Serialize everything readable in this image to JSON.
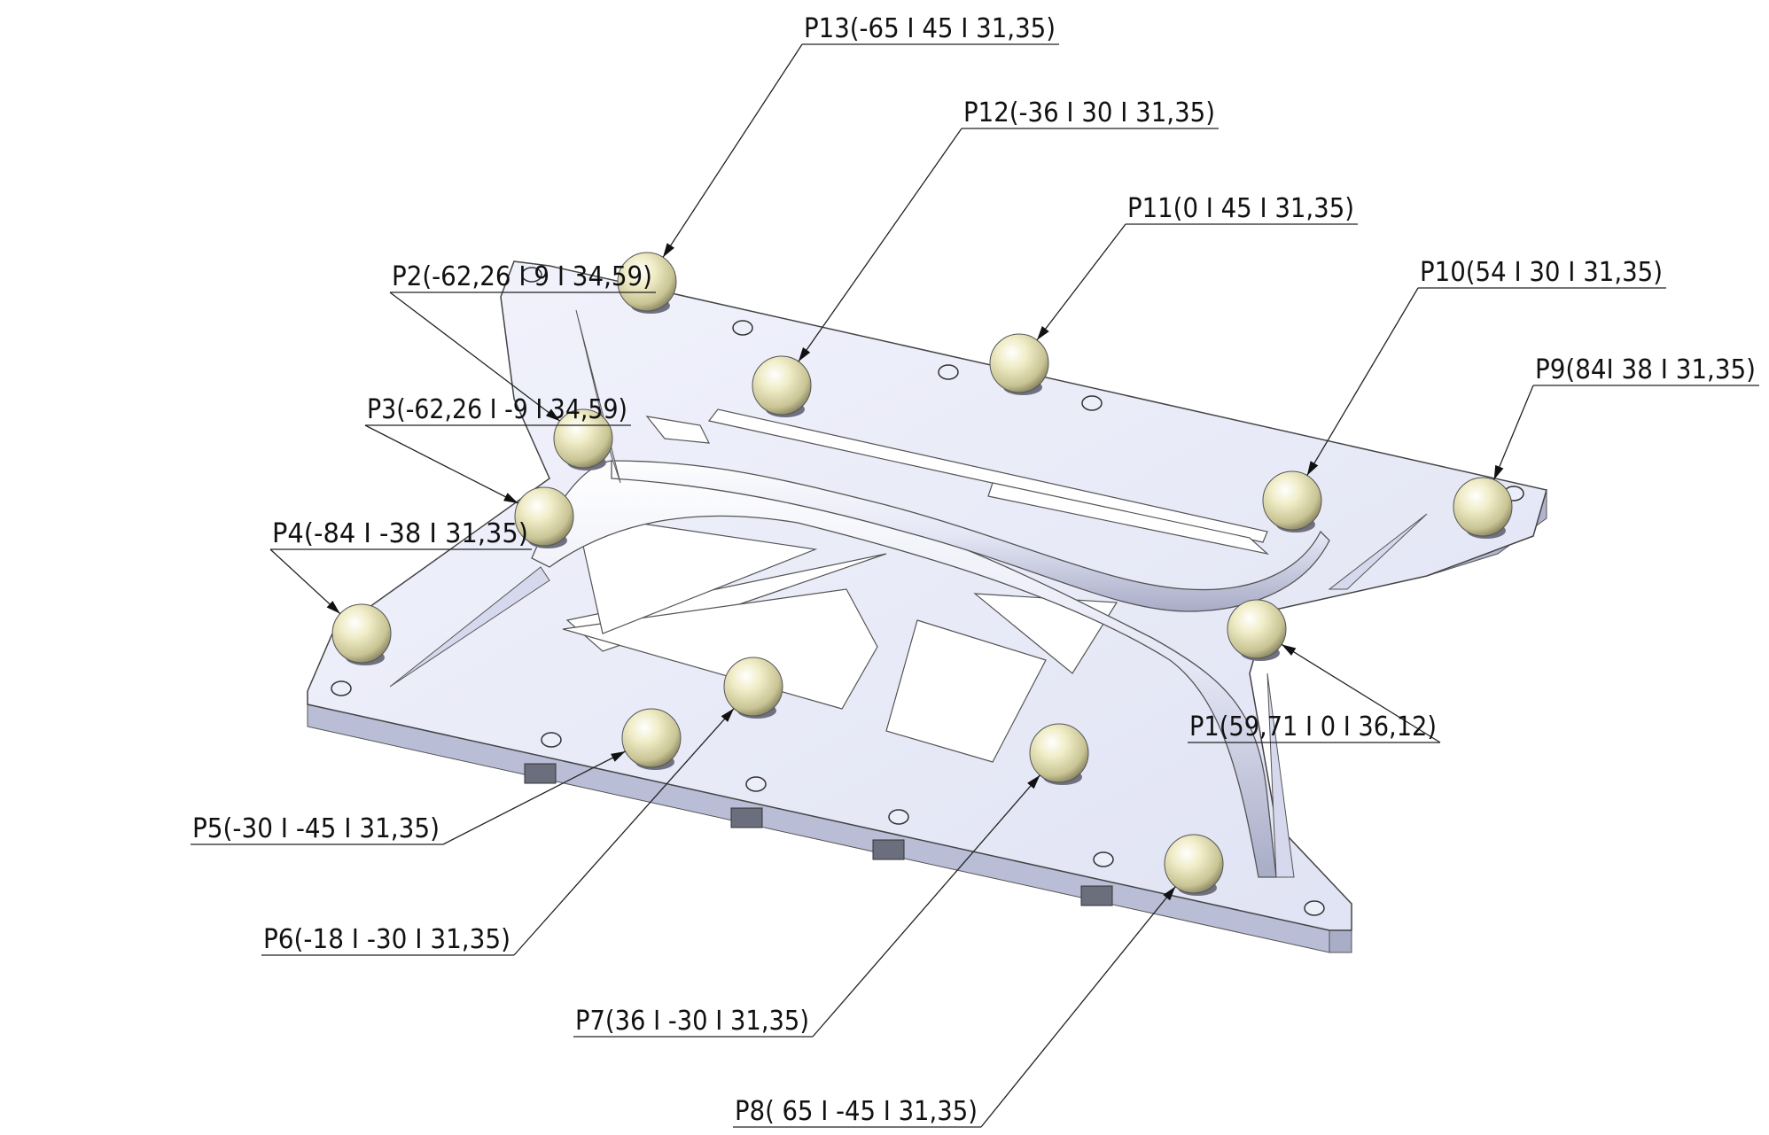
{
  "callouts": [
    {
      "id": "P1",
      "label": "P1(59,71 I 0 I 36,12)"
    },
    {
      "id": "P2",
      "label": "P2(-62,26 I 9 I 34,59)"
    },
    {
      "id": "P3",
      "label": "P3(-62,26 I -9 I 34,59)"
    },
    {
      "id": "P4",
      "label": "P4(-84 I -38 I 31,35)"
    },
    {
      "id": "P5",
      "label": "P5(-30 I -45 I 31,35)"
    },
    {
      "id": "P6",
      "label": "P6(-18 I -30 I 31,35)"
    },
    {
      "id": "P7",
      "label": "P7(36 I -30 I 31,35)"
    },
    {
      "id": "P8",
      "label": "P8( 65 I -45 I 31,35)"
    },
    {
      "id": "P9",
      "label": "P9(84I 38 I 31,35)"
    },
    {
      "id": "P10",
      "label": "P10(54 I 30 I 31,35)"
    },
    {
      "id": "P11",
      "label": "P11(0 I 45 I 31,35)"
    },
    {
      "id": "P12",
      "label": "P12(-36 I 30 I 31,35)"
    },
    {
      "id": "P13",
      "label": "P13(-65 I 45 I 31,35)"
    }
  ],
  "colors": {
    "plate_top": "#e8eaf8",
    "plate_side": "#c4c8de",
    "sphere": "#e6e2b8",
    "line": "#222222"
  }
}
